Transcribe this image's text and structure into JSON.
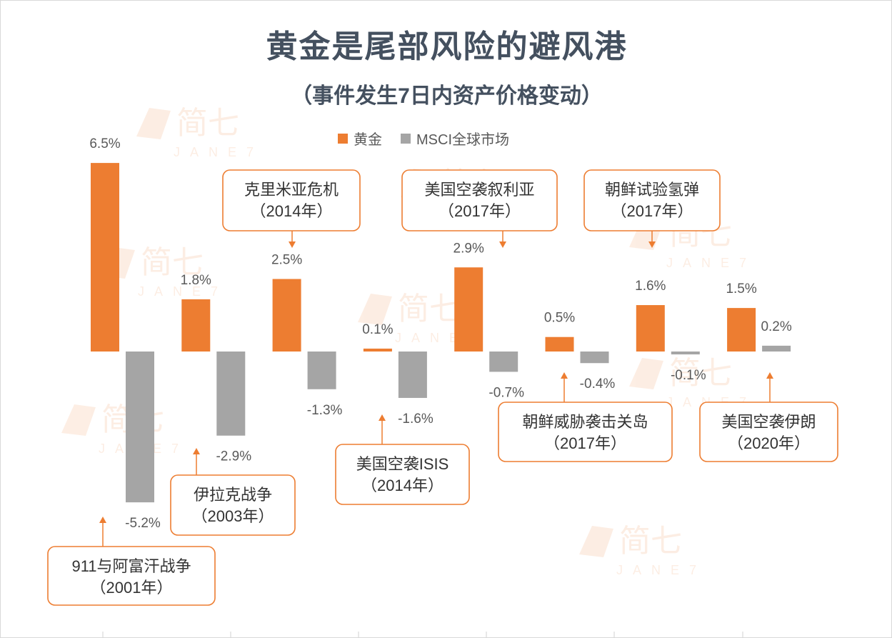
{
  "title": "黄金是尾部风险的避风港",
  "subtitle": "（事件发生7日内资产价格变动）",
  "legend": [
    {
      "label": "黄金",
      "color": "#ED7D31"
    },
    {
      "label": "MSCI全球市场",
      "color": "#A5A5A5"
    }
  ],
  "watermark": {
    "cn": "简七",
    "en": "JANE7"
  },
  "colors": {
    "accent": "#ED7D31",
    "gray": "#A5A5A5",
    "title": "#44505F",
    "label": "#595959",
    "callout_text": "#333333"
  },
  "chart_data": {
    "type": "bar",
    "title": "黄金是尾部风险的避风港",
    "subtitle": "（事件发生7日内资产价格变动）",
    "categories": [
      {
        "event": "911与阿富汗战争",
        "year": "（2001年）"
      },
      {
        "event": "伊拉克战争",
        "year": "（2003年）"
      },
      {
        "event": "克里米亚危机",
        "year": "（2014年）"
      },
      {
        "event": "美国空袭ISIS",
        "year": "（2014年）"
      },
      {
        "event": "美国空袭叙利亚",
        "year": "（2017年）"
      },
      {
        "event": "朝鲜威胁袭击关岛",
        "year": "（2017年）"
      },
      {
        "event": "朝鲜试验氢弹",
        "year": "（2017年）"
      },
      {
        "event": "美国空袭伊朗",
        "year": "（2020年）"
      }
    ],
    "series": [
      {
        "name": "黄金",
        "color": "#ED7D31",
        "values": [
          6.5,
          1.8,
          2.5,
          0.1,
          2.9,
          0.5,
          1.6,
          1.5
        ],
        "labels": [
          "6.5%",
          "1.8%",
          "2.5%",
          "0.1%",
          "2.9%",
          "0.5%",
          "1.6%",
          "1.5%"
        ]
      },
      {
        "name": "MSCI全球市场",
        "color": "#A5A5A5",
        "values": [
          -5.2,
          -2.9,
          -1.3,
          -1.6,
          -0.7,
          -0.4,
          -0.1,
          0.2
        ],
        "labels": [
          "-5.2%",
          "-2.9%",
          "-1.3%",
          "-1.6%",
          "-0.7%",
          "-0.4%",
          "-0.1%",
          "0.2%"
        ]
      }
    ],
    "unit": "%",
    "y_axis_visible": false,
    "grid": false,
    "legend_placement": "top-center"
  }
}
